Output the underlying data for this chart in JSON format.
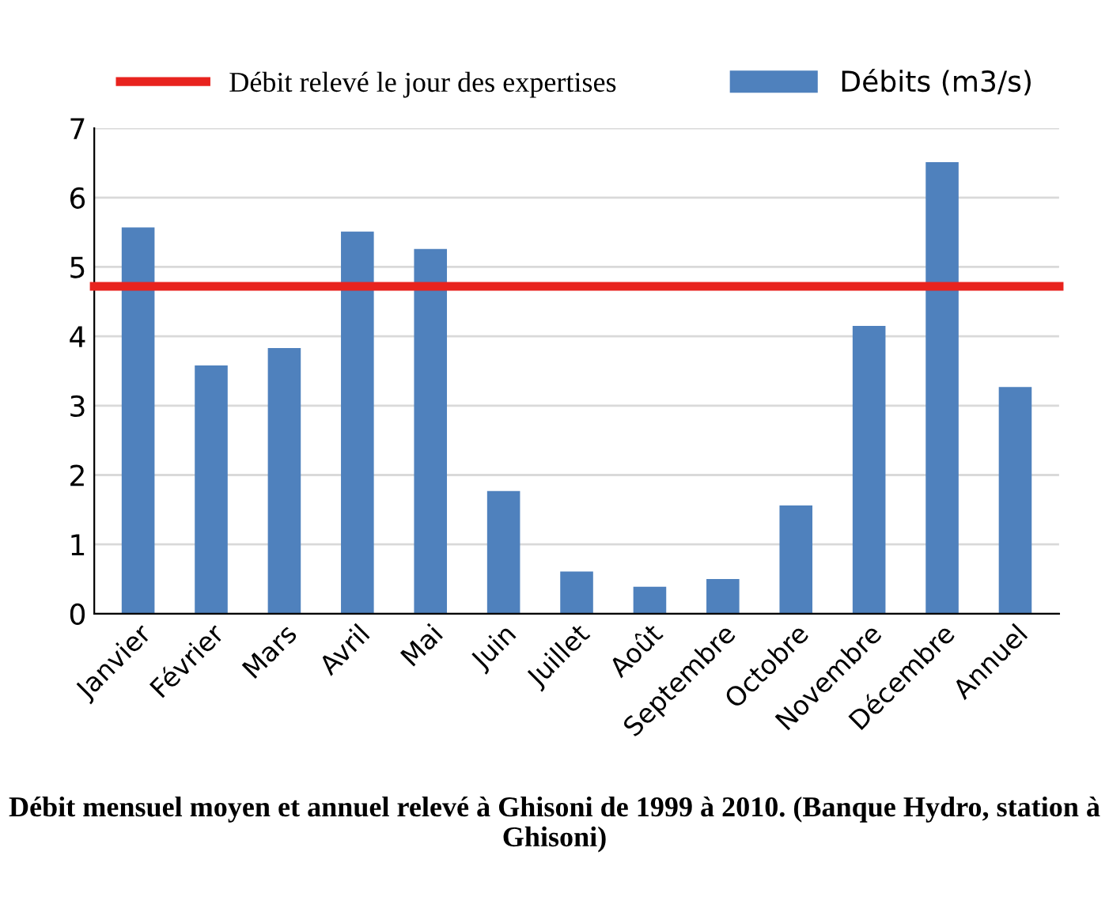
{
  "chart_data": {
    "type": "bar",
    "categories": [
      "Janvier",
      "Février",
      "Mars",
      "Avril",
      "Mai",
      "Juin",
      "Juillet",
      "Août",
      "Septembre",
      "Octobre",
      "Novembre",
      "Décembre",
      "Annuel"
    ],
    "series": [
      {
        "name": "Débits (m3/s)",
        "color": "#4f81bd",
        "values": [
          5.57,
          3.58,
          3.83,
          5.51,
          5.26,
          1.77,
          0.61,
          0.39,
          0.5,
          1.56,
          4.15,
          6.51,
          3.27
        ]
      }
    ],
    "ref_lines": [
      {
        "axis": "y",
        "value": 4.72,
        "label": "Débit relevé le jour des expertises",
        "color": "#e8231e",
        "line_style": "solid"
      }
    ],
    "ylim": [
      0,
      7
    ],
    "yticks": [
      0,
      1,
      2,
      3,
      4,
      5,
      6,
      7
    ],
    "grid": "y",
    "legend": "top",
    "annotations": [
      "Débit mensuel moyen et annuel relevé à Ghisoni de 1999 à 2010. (Banque Hydro, station à Ghisoni)"
    ]
  }
}
